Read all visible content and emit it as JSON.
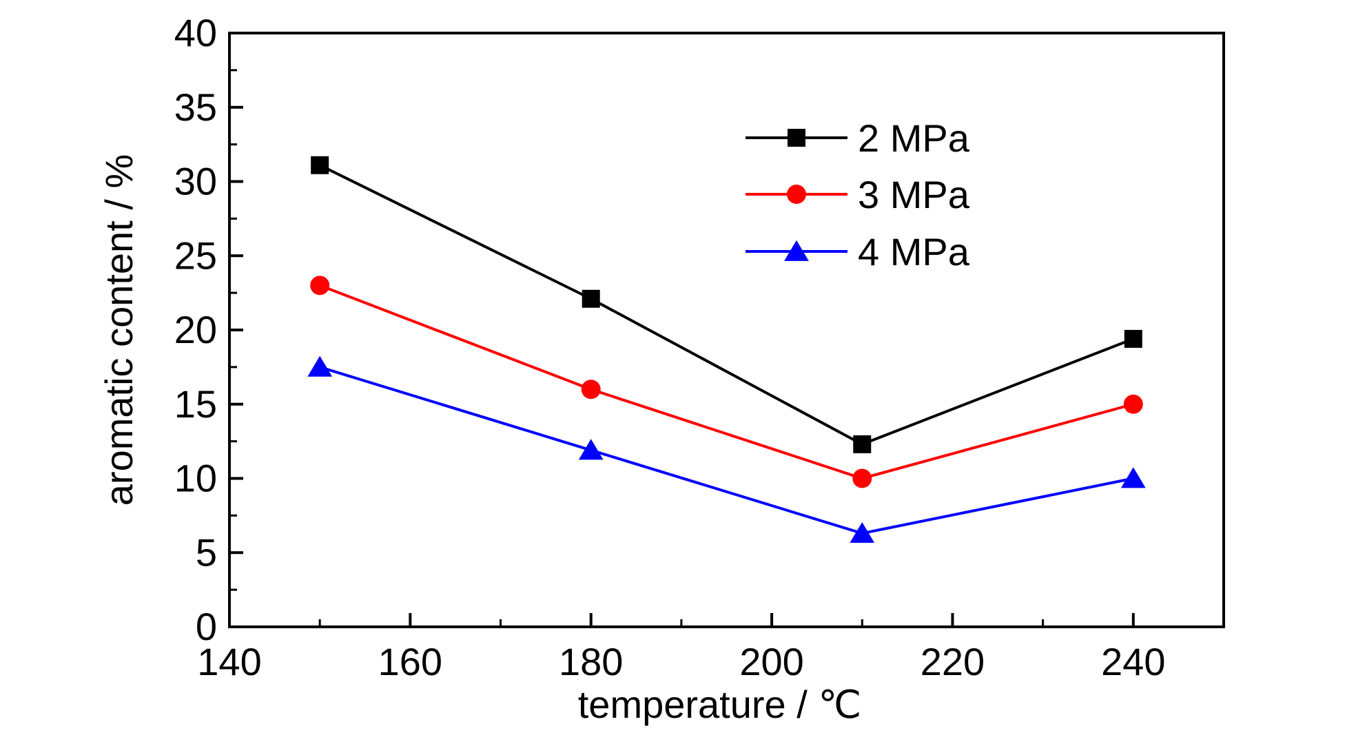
{
  "chart_data": {
    "type": "line",
    "title": "",
    "xlabel": "temperature / ℃",
    "ylabel": "aromatic content / %",
    "xlim": [
      140,
      250
    ],
    "ylim": [
      0,
      40
    ],
    "x_ticks": [
      "140",
      "160",
      "180",
      "200",
      "220",
      "240"
    ],
    "y_ticks": [
      "0",
      "5",
      "10",
      "15",
      "20",
      "25",
      "30",
      "35",
      "40"
    ],
    "grid": false,
    "legend_position": "top-right",
    "x": [
      150,
      180,
      210,
      240
    ],
    "series": [
      {
        "name": "2 MPa",
        "color": "#000000",
        "marker": "square",
        "values": [
          31.1,
          22.1,
          12.3,
          19.4
        ]
      },
      {
        "name": "3 MPa",
        "color": "#ff0000",
        "marker": "circle",
        "values": [
          23.0,
          16.0,
          10.0,
          15.0
        ]
      },
      {
        "name": "4 MPa",
        "color": "#0000ff",
        "marker": "triangle",
        "values": [
          17.5,
          11.9,
          6.3,
          10.0
        ]
      }
    ]
  }
}
